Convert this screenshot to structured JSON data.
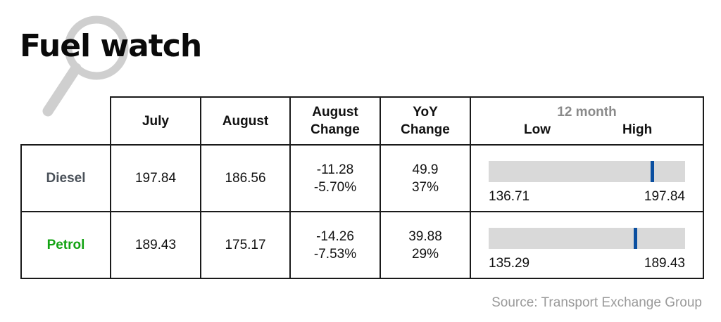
{
  "title": "Fuel watch",
  "source": "Source: Transport Exchange Group",
  "colors": {
    "diesel_label": "#4a5159",
    "petrol_label": "#13a313",
    "marker": "#0b4fa0",
    "track": "#d9d9d9"
  },
  "icons": {
    "background": "magnifier-icon"
  },
  "chart_data": {
    "type": "table",
    "columns": {
      "july": "July",
      "august": "August",
      "august_change": [
        "August",
        "Change"
      ],
      "yoy_change": [
        "YoY",
        "Change"
      ],
      "range": {
        "label": "12 month",
        "low": "Low",
        "high": "High"
      }
    },
    "rows": [
      {
        "name": "Diesel",
        "july": "197.84",
        "august": "186.56",
        "august_change": [
          "-11.28",
          "-5.70%"
        ],
        "yoy_change": [
          "49.9",
          "37%"
        ],
        "range_low": "136.71",
        "range_high": "197.84",
        "range_marker_fraction": 0.83
      },
      {
        "name": "Petrol",
        "july": "189.43",
        "august": "175.17",
        "august_change": [
          "-14.26",
          "-7.53%"
        ],
        "yoy_change": [
          "39.88",
          "29%"
        ],
        "range_low": "135.29",
        "range_high": "189.43",
        "range_marker_fraction": 0.745
      }
    ]
  }
}
